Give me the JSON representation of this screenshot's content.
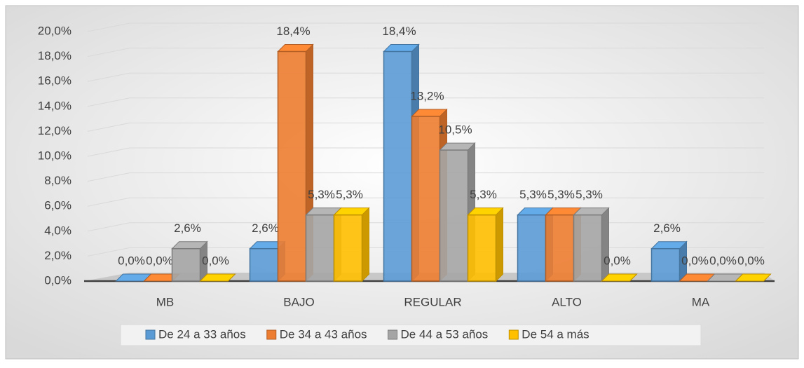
{
  "chart_data": {
    "type": "bar3d",
    "categories": [
      "MB",
      "BAJO",
      "REGULAR",
      "ALTO",
      "MA"
    ],
    "series": [
      {
        "name": "De 24 a 33 años",
        "color": "#5b9bd5",
        "values": [
          0,
          2.6,
          18.4,
          5.3,
          2.6
        ],
        "value_labels": [
          "0,0%",
          "2,6%",
          "18,4%",
          "5,3%",
          "2,6%"
        ]
      },
      {
        "name": "De 34 a 43 años",
        "color": "#ed7d31",
        "values": [
          0,
          18.4,
          13.2,
          5.3,
          0
        ],
        "value_labels": [
          "0,0%",
          "18,4%",
          "13,2%",
          "5,3%",
          "0,0%"
        ]
      },
      {
        "name": "De 44 a 53 años",
        "color": "#a5a5a5",
        "values": [
          2.6,
          5.3,
          10.5,
          5.3,
          0
        ],
        "value_labels": [
          "2,6%",
          "5,3%",
          "10,5%",
          "5,3%",
          "0,0%"
        ]
      },
      {
        "name": "De 54 a más",
        "color": "#ffc000",
        "values": [
          0,
          5.3,
          5.3,
          0,
          0
        ],
        "value_labels": [
          "0,0%",
          "5,3%",
          "5,3%",
          "0,0%",
          "0,0%"
        ]
      }
    ],
    "ylim": [
      0,
      20
    ],
    "yticks": [
      {
        "value": 0,
        "label": "0,0%"
      },
      {
        "value": 2,
        "label": "2,0%"
      },
      {
        "value": 4,
        "label": "4,0%"
      },
      {
        "value": 6,
        "label": "6,0%"
      },
      {
        "value": 8,
        "label": "8,0%"
      },
      {
        "value": 10,
        "label": "10,0%"
      },
      {
        "value": 12,
        "label": "12,0%"
      },
      {
        "value": 14,
        "label": "14,0%"
      },
      {
        "value": 16,
        "label": "16,0%"
      },
      {
        "value": 18,
        "label": "18,0%"
      },
      {
        "value": 20,
        "label": "20,0%"
      }
    ],
    "grid": true,
    "legend": "bottom"
  }
}
